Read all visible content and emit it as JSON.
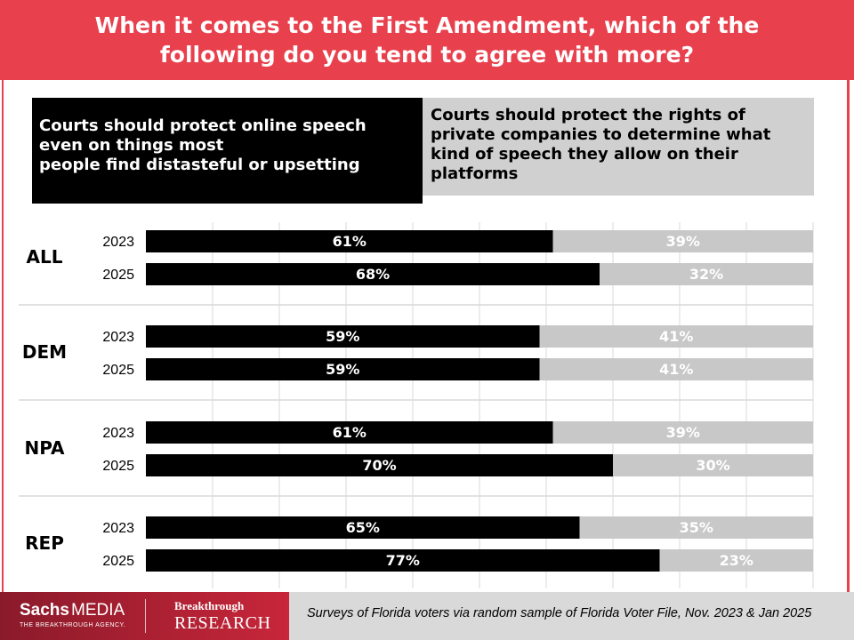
{
  "header": {
    "title": "When it comes to the First Amendment, which of the\nfollowing do you tend to agree with more?"
  },
  "legend": {
    "left": "Courts should protect online speech\neven on things most\npeople find distasteful or upsetting",
    "right": "Courts should protect the rights of\nprivate companies to determine what\nkind of speech they allow on their\nplatforms"
  },
  "chart_data": {
    "type": "bar",
    "orientation": "horizontal",
    "stacked": true,
    "title": "When it comes to the First Amendment, which of the following do you tend to agree with more?",
    "series": [
      {
        "name": "Courts should protect online speech even on things most people find distasteful or upsetting",
        "color": "#000000"
      },
      {
        "name": "Courts should protect the rights of private companies to determine what kind of speech they allow on their platforms",
        "color": "#c8c8c8"
      }
    ],
    "groups": [
      {
        "label": "ALL",
        "rows": [
          {
            "year": "2023",
            "values": [
              61,
              39
            ],
            "labels": [
              "61%",
              "39%"
            ]
          },
          {
            "year": "2025",
            "values": [
              68,
              32
            ],
            "labels": [
              "68%",
              "32%"
            ]
          }
        ]
      },
      {
        "label": "DEM",
        "rows": [
          {
            "year": "2023",
            "values": [
              59,
              41
            ],
            "labels": [
              "59%",
              "41%"
            ]
          },
          {
            "year": "2025",
            "values": [
              59,
              41
            ],
            "labels": [
              "59%",
              "41%"
            ]
          }
        ]
      },
      {
        "label": "NPA",
        "rows": [
          {
            "year": "2023",
            "values": [
              61,
              39
            ],
            "labels": [
              "61%",
              "39%"
            ]
          },
          {
            "year": "2025",
            "values": [
              70,
              30
            ],
            "labels": [
              "70%",
              "30%"
            ]
          }
        ]
      },
      {
        "label": "REP",
        "rows": [
          {
            "year": "2023",
            "values": [
              65,
              35
            ],
            "labels": [
              "65%",
              "35%"
            ]
          },
          {
            "year": "2025",
            "values": [
              77,
              23
            ],
            "labels": [
              "77%",
              "23%"
            ]
          }
        ]
      }
    ],
    "xlim": [
      0,
      100
    ],
    "grid": true
  },
  "footer": {
    "brand_sachs": "Sachs",
    "brand_media": "MEDIA",
    "brand_tagline": "THE BREAKTHROUGH AGENCY.",
    "brand_breakthrough": "Breakthrough",
    "brand_research": "RESEARCH",
    "note": "Surveys of Florida voters via random sample of Florida Voter File, Nov. 2023 & Jan 2025"
  }
}
